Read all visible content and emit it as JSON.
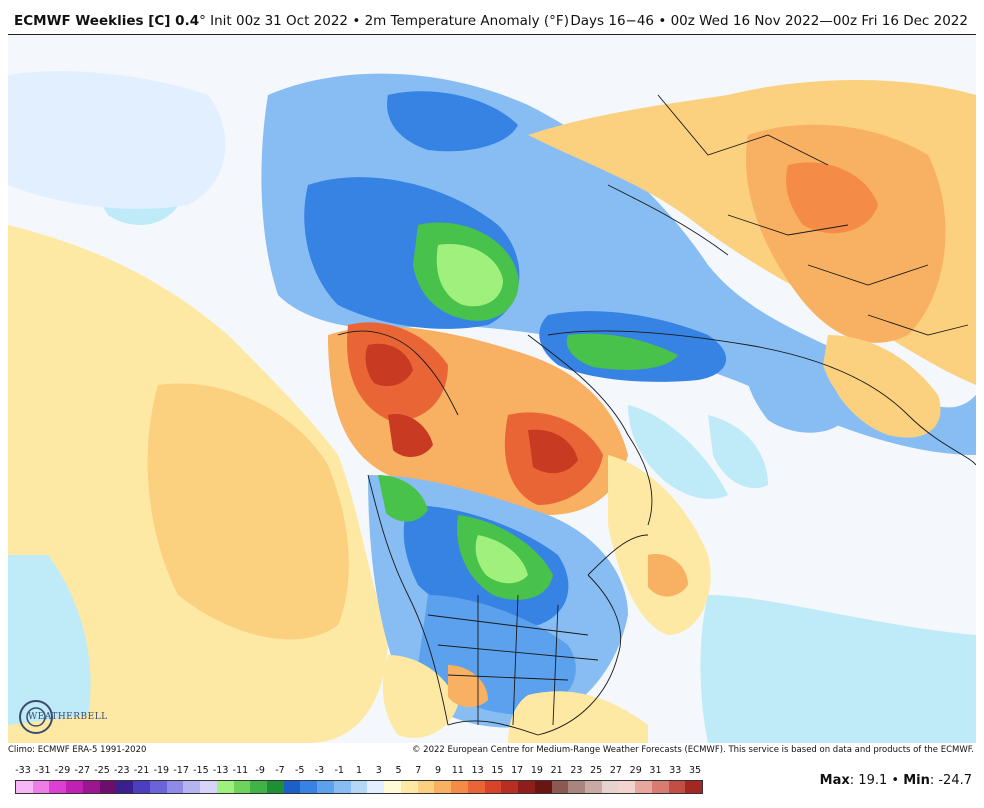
{
  "header": {
    "title_bold": "ECMWF Weeklies [C] 0.4",
    "title_rest": "° Init 00z 31 Oct 2022 • 2m Temperature Anomaly (°F)",
    "valid_range": "Days 16−46 • 00z Wed 16 Nov 2022—00z Fri 16 Dec 2022"
  },
  "footer": {
    "climo": "Climo: ECMWF ERA-5 1991-2020",
    "copyright": "© 2022 European Centre for Medium-Range Weather Forecasts (ECMWF). This service is based on data and products of the ECMWF."
  },
  "legend": {
    "ticks": [
      "-33",
      "-31",
      "-29",
      "-27",
      "-25",
      "-23",
      "-21",
      "-19",
      "-17",
      "-15",
      "-13",
      "-11",
      "-9",
      "-7",
      "-5",
      "-3",
      "-1",
      "1",
      "3",
      "5",
      "7",
      "9",
      "11",
      "13",
      "15",
      "17",
      "19",
      "21",
      "23",
      "25",
      "27",
      "29",
      "31",
      "33",
      "35"
    ],
    "colors": [
      "#f7b6f5",
      "#ef7de8",
      "#dd3fd4",
      "#c21fb5",
      "#9b1690",
      "#6e0e6c",
      "#3a1f8f",
      "#4b3fbf",
      "#6a63d9",
      "#8e8ae6",
      "#b5b3f0",
      "#d6d5f7",
      "#9ff07d",
      "#6fd25a",
      "#3fb345",
      "#1f8f35",
      "#1a60c8",
      "#3683e4",
      "#5ba1ee",
      "#87bdf3",
      "#b5d7f7",
      "#e2efff",
      "#fffbd6",
      "#fde9a4",
      "#fbd07f",
      "#f8b062",
      "#f48c48",
      "#ea6535",
      "#d8442a",
      "#b82e23",
      "#8e1d1b",
      "#6a1414",
      "#8a5a52",
      "#a8857e",
      "#c7aaa4",
      "#e6d3cf",
      "#f3d3cd",
      "#e8a79d",
      "#d87b70",
      "#c44e45",
      "#a52723"
    ],
    "max_label": "Max",
    "max_value": "19.1",
    "min_label": "Min",
    "min_value": "-24.7"
  },
  "logo": {
    "text": "WEATHERBELL"
  },
  "colors": {
    "background": "#f4f7fb",
    "warm_light": "#fde9a4",
    "warm_mid": "#f8b062",
    "warm_strong": "#ea6535",
    "warm_extreme": "#c93a22",
    "cold_light": "#b5d7f7",
    "cold_mid": "#5ba1ee",
    "cold_strong": "#2a6fd6",
    "green": "#49c24b",
    "light_green": "#9ff07d",
    "ocean_cyan": "#bfeaf7"
  }
}
